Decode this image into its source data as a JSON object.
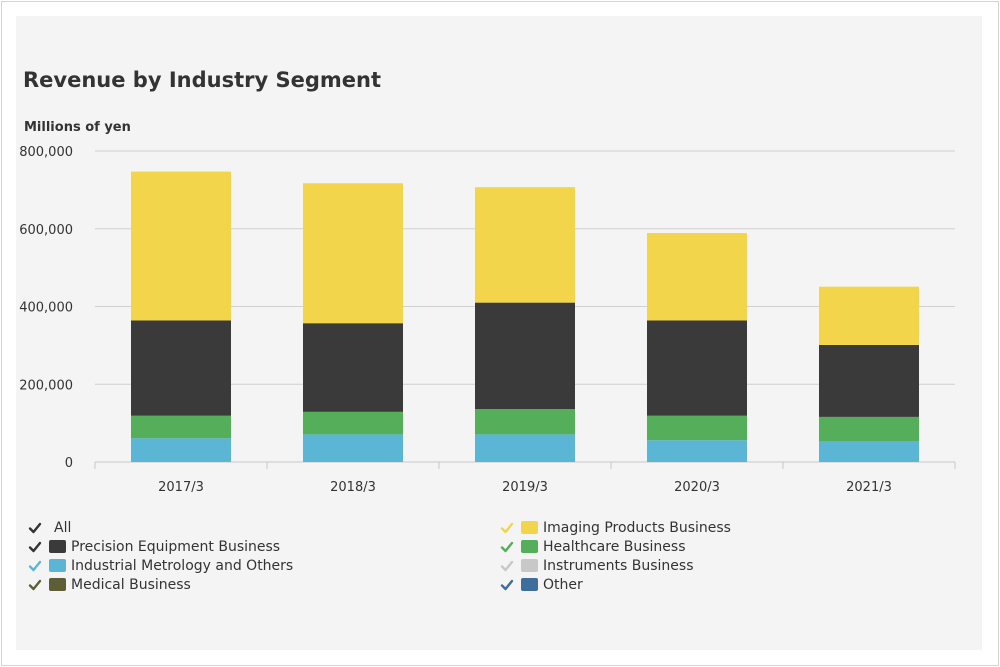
{
  "title": "Revenue by Industry Segment",
  "unit_label": "Millions of yen",
  "chart_data": {
    "type": "bar",
    "stacked": true,
    "title": "Revenue by Industry Segment",
    "ylabel": "Millions of yen",
    "xlabel": "",
    "ylim": [
      0,
      800000
    ],
    "yticks": [
      0,
      200000,
      400000,
      600000,
      800000
    ],
    "ytick_labels": [
      "0",
      "200,000",
      "400,000",
      "600,000",
      "800,000"
    ],
    "categories": [
      "2017/3",
      "2018/3",
      "2019/3",
      "2020/3",
      "2021/3"
    ],
    "series": [
      {
        "name": "Industrial Metrology and Others",
        "color": "#5ab6d4",
        "values": [
          61000,
          71000,
          71000,
          56000,
          53000
        ]
      },
      {
        "name": "Healthcare Business",
        "color": "#55ae59",
        "values": [
          58000,
          58000,
          65000,
          63000,
          63000
        ]
      },
      {
        "name": "Precision Equipment Business",
        "color": "#3a3a3a",
        "values": [
          245000,
          228000,
          274000,
          245000,
          185000
        ]
      },
      {
        "name": "Imaging Products Business",
        "color": "#f3d54b",
        "values": [
          383000,
          360000,
          297000,
          225000,
          150000
        ]
      }
    ],
    "legend": [
      {
        "label": "All",
        "check_color": "#333333",
        "swatch": null
      },
      {
        "label": "Precision Equipment Business",
        "check_color": "#333333",
        "swatch": "#3a3a3a"
      },
      {
        "label": "Industrial Metrology and Others",
        "check_color": "#5ab6d4",
        "swatch": "#5ab6d4"
      },
      {
        "label": "Medical Business",
        "check_color": "#5e5e36",
        "swatch": "#5e5e36"
      },
      {
        "label": "Imaging Products Business",
        "check_color": "#f3d54b",
        "swatch": "#f3d54b"
      },
      {
        "label": "Healthcare Business",
        "check_color": "#55ae59",
        "swatch": "#55ae59"
      },
      {
        "label": "Instruments Business",
        "check_color": "#c8c8c8",
        "swatch": "#c8c8c8"
      },
      {
        "label": "Other",
        "check_color": "#3e6e9c",
        "swatch": "#3e6e9c"
      }
    ]
  }
}
